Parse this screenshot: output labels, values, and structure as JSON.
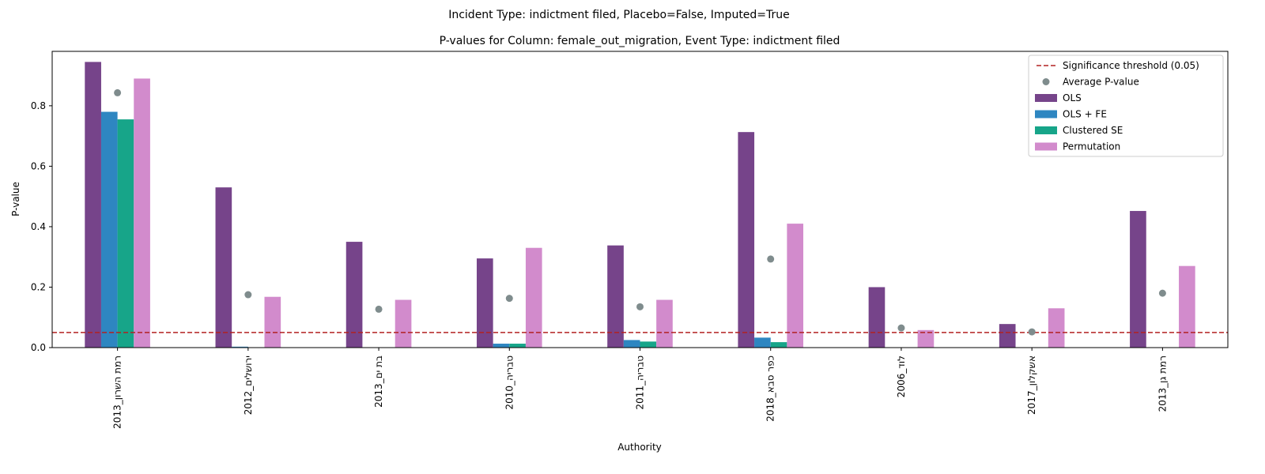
{
  "chart_data": {
    "type": "bar",
    "suptitle": "Incident Type: indictment filed, Placebo=False, Imputed=True",
    "title": "P-values for Column: female_out_migration, Event Type: indictment filed",
    "xlabel": "Authority",
    "ylabel": "P-value",
    "ylim": [
      0,
      0.98
    ],
    "yticks": [
      0.0,
      0.2,
      0.4,
      0.6,
      0.8
    ],
    "grid": false,
    "legend_position": "top-right",
    "categories": [
      "רמת השרון_2013",
      "ירושלים_2012",
      "בת ים_2013",
      "טבריה_2010",
      "טבריה_2011",
      "כפר סבא_2018",
      "לוד_2006",
      "אשקלון_2017",
      "רמת גן_2013"
    ],
    "series": [
      {
        "name": "OLS",
        "color": "#76448a",
        "values": [
          0.945,
          0.53,
          0.35,
          0.295,
          0.338,
          0.713,
          0.2,
          0.078,
          0.452
        ]
      },
      {
        "name": "OLS + FE",
        "color": "#2e86c1",
        "values": [
          0.78,
          0.003,
          0.0,
          0.013,
          0.025,
          0.033,
          0.0,
          0.0,
          0.0
        ]
      },
      {
        "name": "Clustered SE",
        "color": "#17a589",
        "values": [
          0.755,
          0.0,
          0.0,
          0.013,
          0.02,
          0.018,
          0.0,
          0.0,
          0.0
        ]
      },
      {
        "name": "Permutation",
        "color": "#d28bcc",
        "values": [
          0.89,
          0.168,
          0.158,
          0.33,
          0.158,
          0.41,
          0.058,
          0.13,
          0.27
        ]
      }
    ],
    "average_pvalue": {
      "name": "Average P-value",
      "color": "#7f8c8d",
      "values": [
        0.843,
        0.175,
        0.127,
        0.163,
        0.135,
        0.293,
        0.065,
        0.052,
        0.18
      ]
    },
    "threshold": {
      "name": "Significance threshold (0.05)",
      "value": 0.05,
      "color": "#b22222"
    }
  }
}
